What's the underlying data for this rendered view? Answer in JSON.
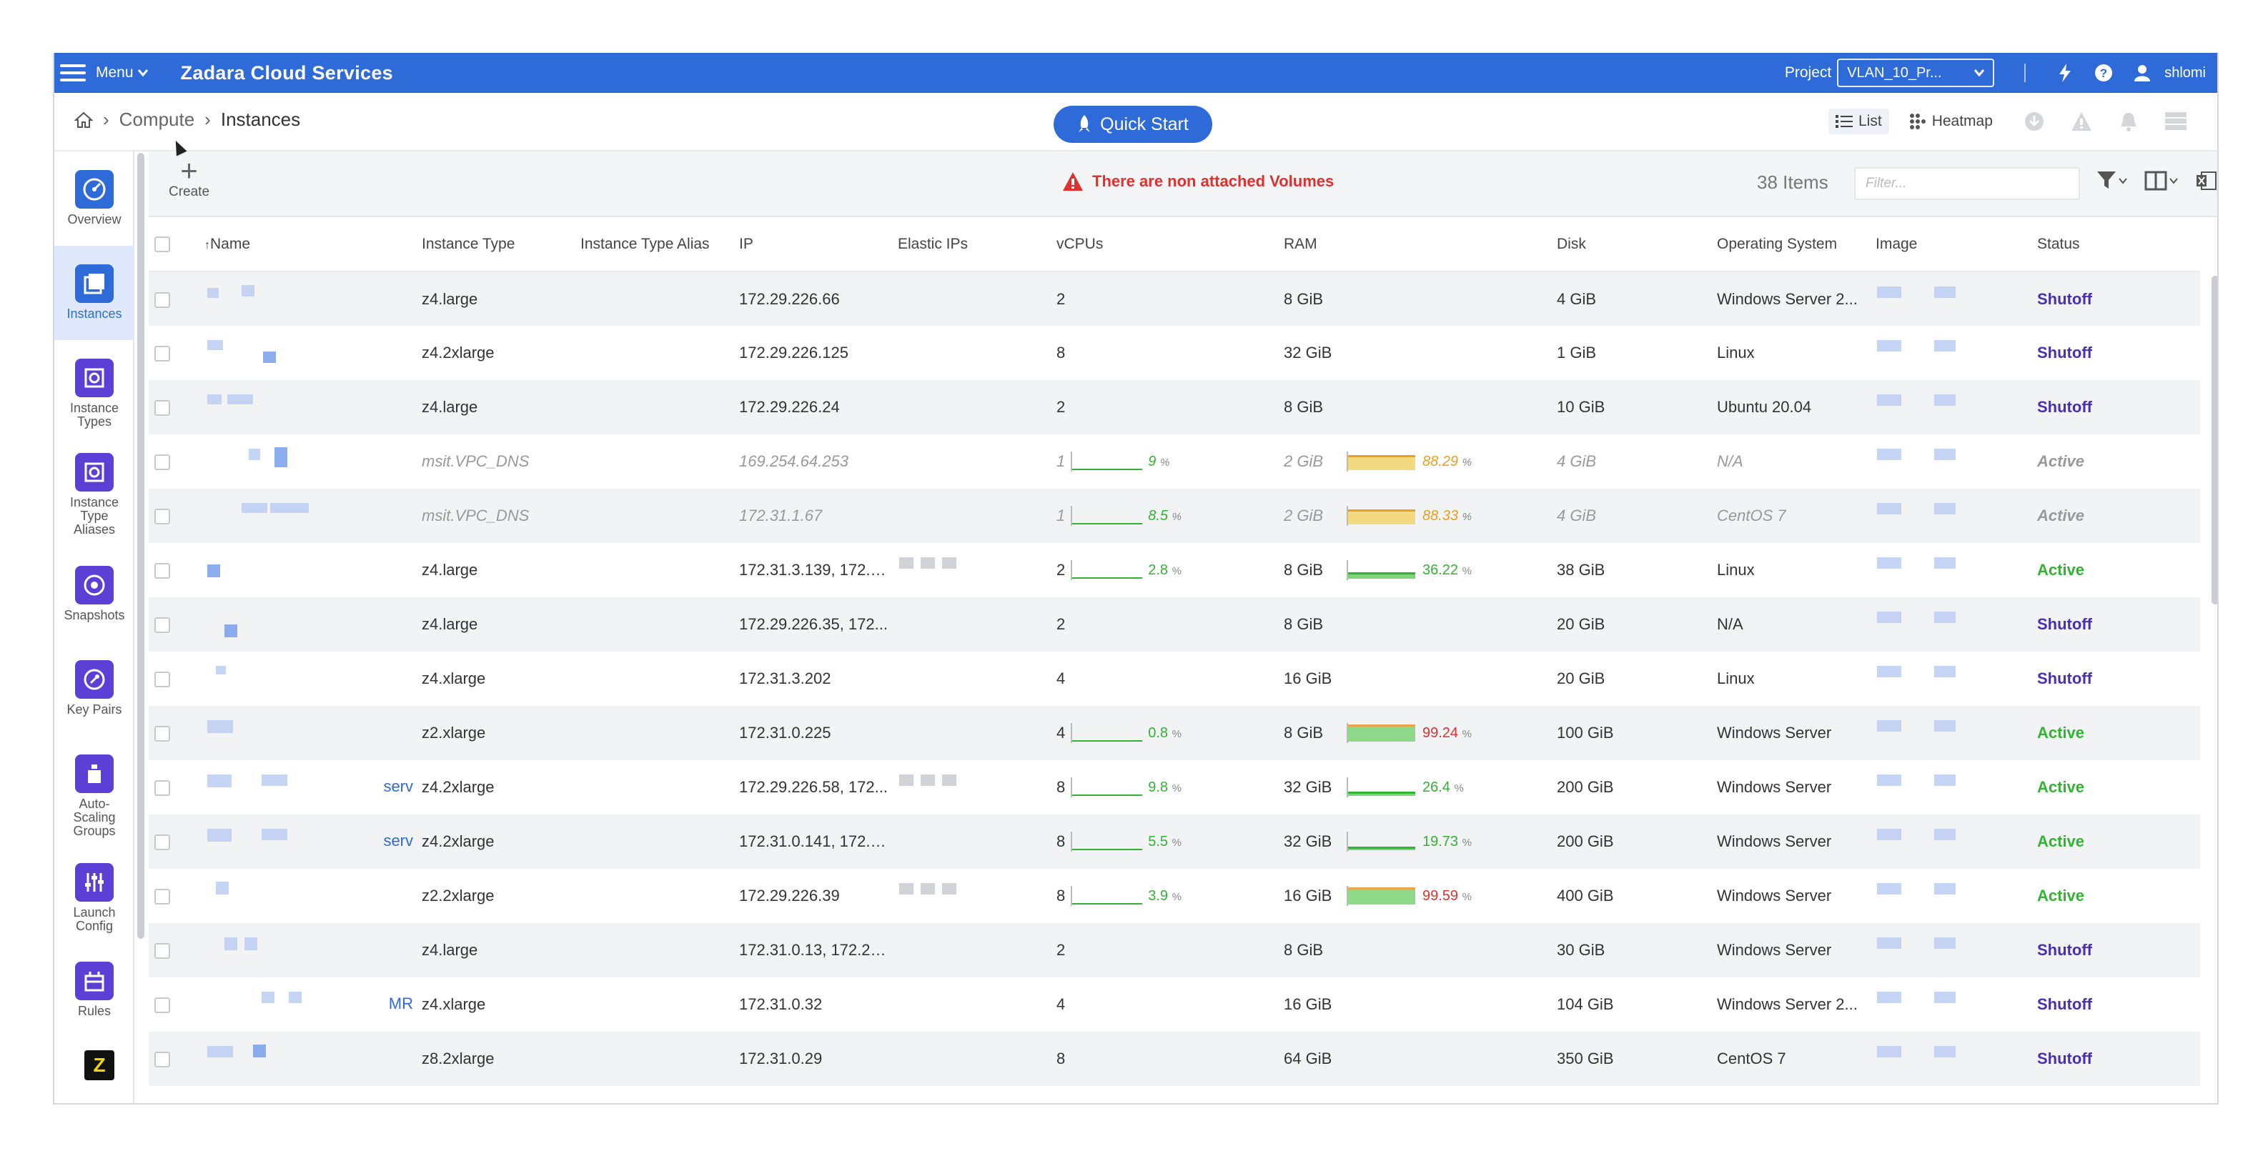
{
  "topbar": {
    "menu_label": "Menu",
    "brand": "Zadara Cloud Services",
    "project_label": "Project",
    "project_value": "VLAN_10_Pr...",
    "username": "shlomi"
  },
  "breadcrumb": {
    "home": "home-icon",
    "items": [
      "Compute",
      "Instances"
    ]
  },
  "quick_start": "Quick Start",
  "view": {
    "list_label": "List",
    "heatmap_label": "Heatmap"
  },
  "sidebar": {
    "items": [
      {
        "label": "Overview"
      },
      {
        "label": "Instances",
        "active": true
      },
      {
        "label": "Instance Types"
      },
      {
        "label": "Instance Type Aliases"
      },
      {
        "label": "Snapshots"
      },
      {
        "label": "Key Pairs"
      },
      {
        "label": "Auto-Scaling Groups"
      },
      {
        "label": "Launch Config"
      },
      {
        "label": "Rules"
      }
    ]
  },
  "toolbar": {
    "create_label": "Create",
    "warning": "There are non attached Volumes",
    "item_count": "38 Items",
    "filter_placeholder": "Filter..."
  },
  "table": {
    "columns": [
      "Name",
      "Instance Type",
      "Instance Type Alias",
      "IP",
      "Elastic IPs",
      "vCPUs",
      "RAM",
      "Disk",
      "Operating System",
      "Image",
      "Status"
    ],
    "rows": [
      {
        "type": "z4.large",
        "ip": "172.29.226.66",
        "vcpu": "2",
        "ram": "8 GiB",
        "disk": "4 GiB",
        "os": "Windows Server 2...",
        "status": "Shutoff"
      },
      {
        "type": "z4.2xlarge",
        "ip": "172.29.226.125",
        "vcpu": "8",
        "ram": "32 GiB",
        "disk": "1 GiB",
        "os": "Linux",
        "status": "Shutoff"
      },
      {
        "type": "z4.large",
        "ip": "172.29.226.24",
        "vcpu": "2",
        "ram": "8 GiB",
        "disk": "10 GiB",
        "os": "Ubuntu 20.04",
        "status": "Shutoff"
      },
      {
        "type": "msit.VPC_DNS",
        "ip": "169.254.64.253",
        "vcpu": "1",
        "cpu_pct": "9",
        "ram": "2 GiB",
        "ram_pct": "88.29",
        "disk": "4 GiB",
        "os": "N/A",
        "status": "Active",
        "dim": true
      },
      {
        "type": "msit.VPC_DNS",
        "ip": "172.31.1.67",
        "vcpu": "1",
        "cpu_pct": "8.5",
        "ram": "2 GiB",
        "ram_pct": "88.33",
        "disk": "4 GiB",
        "os": "CentOS 7",
        "status": "Active",
        "dim": true
      },
      {
        "type": "z4.large",
        "ip": "172.31.3.139, 172.2...",
        "vcpu": "2",
        "cpu_pct": "2.8",
        "ram": "8 GiB",
        "ram_pct": "36.22",
        "disk": "38 GiB",
        "os": "Linux",
        "status": "Active"
      },
      {
        "type": "z4.large",
        "ip": "172.29.226.35, 172...",
        "vcpu": "2",
        "ram": "8 GiB",
        "disk": "20 GiB",
        "os": "N/A",
        "status": "Shutoff"
      },
      {
        "type": "z4.xlarge",
        "ip": "172.31.3.202",
        "vcpu": "4",
        "ram": "16 GiB",
        "disk": "20 GiB",
        "os": "Linux",
        "status": "Shutoff"
      },
      {
        "type": "z2.xlarge",
        "ip": "172.31.0.225",
        "vcpu": "4",
        "cpu_pct": "0.8",
        "ram": "8 GiB",
        "ram_pct": "99.24",
        "disk": "100 GiB",
        "os": "Windows Server",
        "status": "Active"
      },
      {
        "type": "z4.2xlarge",
        "ip": "172.29.226.58, 172...",
        "vcpu": "8",
        "cpu_pct": "9.8",
        "ram": "32 GiB",
        "ram_pct": "26.4",
        "disk": "200 GiB",
        "os": "Windows Server",
        "status": "Active"
      },
      {
        "type": "z4.2xlarge",
        "ip": "172.31.0.141, 172.2...",
        "vcpu": "8",
        "cpu_pct": "5.5",
        "ram": "32 GiB",
        "ram_pct": "19.73",
        "disk": "200 GiB",
        "os": "Windows Server",
        "status": "Active"
      },
      {
        "type": "z2.2xlarge",
        "ip": "172.29.226.39",
        "vcpu": "8",
        "cpu_pct": "3.9",
        "ram": "16 GiB",
        "ram_pct": "99.59",
        "disk": "400 GiB",
        "os": "Windows Server",
        "status": "Active"
      },
      {
        "type": "z4.large",
        "ip": "172.31.0.13, 172.29...",
        "vcpu": "2",
        "ram": "8 GiB",
        "disk": "30 GiB",
        "os": "Windows Server",
        "status": "Shutoff"
      },
      {
        "type": "z4.xlarge",
        "ip": "172.31.0.32",
        "vcpu": "4",
        "ram": "16 GiB",
        "disk": "104 GiB",
        "os": "Windows Server 2...",
        "status": "Shutoff"
      },
      {
        "type": "z8.2xlarge",
        "ip": "172.31.0.29",
        "vcpu": "8",
        "ram": "64 GiB",
        "disk": "350 GiB",
        "os": "CentOS 7",
        "status": "Shutoff"
      }
    ],
    "name_fragments": [
      "serv",
      "serv",
      "MR"
    ]
  },
  "colors": {
    "brand_blue": "#2f6bd8",
    "shutoff": "#4a2fb0",
    "active": "#34b233",
    "warning": "#e03030",
    "ram_high": "#e7a020"
  }
}
